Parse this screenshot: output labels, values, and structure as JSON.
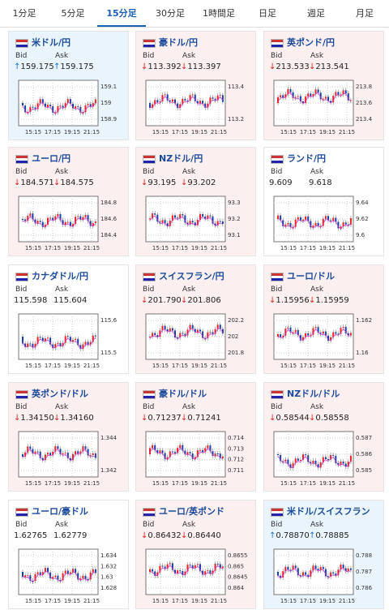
{
  "tabs": [
    "1分足",
    "5分足",
    "15分足",
    "30分足",
    "1時間足",
    "日足",
    "週足",
    "月足"
  ],
  "active_tab": 2,
  "bid_label": "Bid",
  "ask_label": "Ask",
  "xticks": [
    "15:15",
    "17:15",
    "19:15",
    "21:15"
  ],
  "cards": [
    {
      "name": "米ドル/円",
      "trend": "up",
      "arrow": "↑",
      "bid": "159.175",
      "ask": "159.175",
      "yticks": [
        "159.1",
        "159",
        "158.9"
      ]
    },
    {
      "name": "豪ドル/円",
      "trend": "down",
      "arrow": "↓",
      "bid": "113.392",
      "ask": "113.397",
      "yticks": [
        "113.4",
        "113.2"
      ]
    },
    {
      "name": "英ポンド/円",
      "trend": "down",
      "arrow": "↓",
      "bid": "213.533",
      "ask": "213.541",
      "yticks": [
        "213.8",
        "213.6",
        "213.4"
      ]
    },
    {
      "name": "ユーロ/円",
      "trend": "down",
      "arrow": "↓",
      "bid": "184.571",
      "ask": "184.575",
      "yticks": [
        "184.8",
        "184.6",
        "184.4"
      ]
    },
    {
      "name": "NZドル/円",
      "trend": "down",
      "arrow": "↓",
      "bid": "93.195",
      "ask": "93.202",
      "yticks": [
        "93.3",
        "93.2",
        "93.1"
      ]
    },
    {
      "name": "ランド/円",
      "trend": "none",
      "bid": "9.609",
      "ask": "9.618",
      "yticks": [
        "9.64",
        "9.62",
        "9.6"
      ]
    },
    {
      "name": "カナダドル/円",
      "trend": "none",
      "bid": "115.598",
      "ask": "115.604",
      "yticks": [
        "115.6",
        "115.5"
      ]
    },
    {
      "name": "スイスフラン/円",
      "trend": "down",
      "arrow": "↓",
      "bid": "201.790",
      "ask": "201.806",
      "yticks": [
        "202.2",
        "202",
        "201.8"
      ]
    },
    {
      "name": "ユーロ/ドル",
      "trend": "down",
      "arrow": "↓",
      "bid": "1.15956",
      "ask": "1.15959",
      "yticks": [
        "1.162",
        "1.16"
      ]
    },
    {
      "name": "英ポンド/ドル",
      "trend": "down",
      "arrow": "↓",
      "bid": "1.34150",
      "ask": "1.34160",
      "yticks": [
        "1.344",
        "1.342"
      ]
    },
    {
      "name": "豪ドル/ドル",
      "trend": "down",
      "arrow": "↓",
      "bid": "0.71237",
      "ask": "0.71241",
      "yticks": [
        "0.714",
        "0.713",
        "0.712",
        "0.711"
      ]
    },
    {
      "name": "NZドル/ドル",
      "trend": "down",
      "arrow": "↓",
      "bid": "0.58544",
      "ask": "0.58558",
      "yticks": [
        "0.587",
        "0.586",
        "0.585"
      ]
    },
    {
      "name": "ユーロ/豪ドル",
      "trend": "none",
      "bid": "1.62765",
      "ask": "1.62779",
      "yticks": [
        "1.634",
        "1.632",
        "1.63",
        "1.628"
      ]
    },
    {
      "name": "ユーロ/英ポンド",
      "trend": "down",
      "arrow": "↓",
      "bid": "0.86432",
      "ask": "0.86440",
      "yticks": [
        "0.8655",
        "0.865",
        "0.8645",
        "0.864"
      ]
    },
    {
      "name": "米ドル/スイスフラン",
      "trend": "up",
      "arrow": "↑",
      "bid": "0.78870",
      "ask": "0.78885",
      "yticks": [
        "0.788",
        "0.787",
        "0.786"
      ]
    }
  ]
}
